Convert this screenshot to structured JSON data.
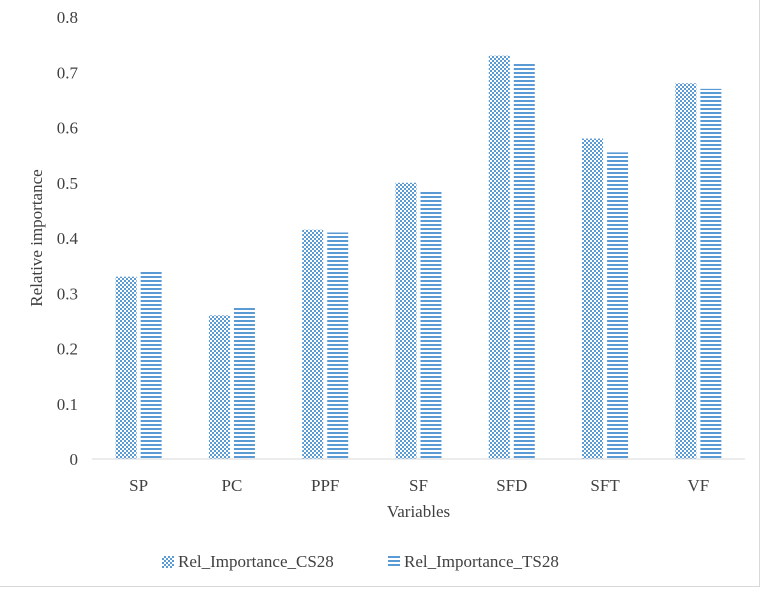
{
  "chart_data": {
    "type": "bar",
    "title": "",
    "xlabel": "Variables",
    "ylabel": "Relative importance",
    "ylim": [
      0,
      0.8
    ],
    "yticks": [
      "0",
      "0.1",
      "0.2",
      "0.3",
      "0.4",
      "0.5",
      "0.6",
      "0.7",
      "0.8"
    ],
    "categories": [
      "SP",
      "PC",
      "PPF",
      "SF",
      "SFD",
      "SFT",
      "VF"
    ],
    "grid": false,
    "legend_position": "bottom",
    "series": [
      {
        "name": "Rel_Importance_CS28",
        "values": [
          0.33,
          0.26,
          0.415,
          0.5,
          0.73,
          0.58,
          0.68
        ],
        "color": "#5b9bd5",
        "pattern": "checker"
      },
      {
        "name": "Rel_Importance_TS28",
        "values": [
          0.34,
          0.275,
          0.41,
          0.485,
          0.715,
          0.555,
          0.67
        ],
        "color": "#5b9bd5",
        "pattern": "horizontal-stripes"
      }
    ]
  }
}
